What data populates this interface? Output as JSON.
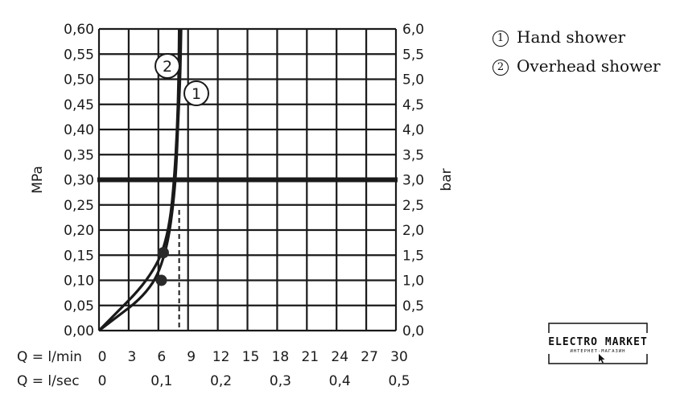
{
  "chart_data": {
    "type": "line",
    "ylabel_left": "MPa",
    "ylabel_right": "bar",
    "ylim": [
      0,
      0.6
    ],
    "y_left_ticks": [
      "0,00",
      "0,05",
      "0,10",
      "0,15",
      "0,20",
      "0,25",
      "0,30",
      "0,35",
      "0,40",
      "0,45",
      "0,50",
      "0,55",
      "0,60"
    ],
    "y_right_ticks": [
      "0,0",
      "0,5",
      "1,0",
      "1,5",
      "2,0",
      "2,5",
      "3,0",
      "3,5",
      "4,0",
      "4,5",
      "5,0",
      "5,5",
      "6,0"
    ],
    "x_rows": [
      {
        "label": "Q = l/min",
        "ticks": [
          "0",
          "3",
          "6",
          "9",
          "12",
          "15",
          "18",
          "21",
          "24",
          "27",
          "30"
        ]
      },
      {
        "label": "Q = l/sec",
        "ticks": [
          "0",
          "0,1",
          "0,2",
          "0,3",
          "0,4",
          "0,5"
        ]
      }
    ],
    "xlim": [
      0,
      30
    ],
    "reference_line_mpa": 0.3,
    "grid": true,
    "series": [
      {
        "name": "Hand shower",
        "marker": "1",
        "points": [
          [
            0,
            0
          ],
          [
            2,
            0.03
          ],
          [
            4,
            0.06
          ],
          [
            5.5,
            0.095
          ],
          [
            6.3,
            0.13
          ],
          [
            7,
            0.18
          ],
          [
            7.5,
            0.25
          ],
          [
            7.8,
            0.32
          ],
          [
            8.0,
            0.42
          ],
          [
            8.2,
            0.5
          ],
          [
            8.3,
            0.6
          ]
        ],
        "highlight": [
          6.3,
          0.1
        ]
      },
      {
        "name": "Overhead shower",
        "marker": "2",
        "points": [
          [
            0,
            0
          ],
          [
            2,
            0.04
          ],
          [
            4,
            0.08
          ],
          [
            5.5,
            0.12
          ],
          [
            6.5,
            0.16
          ],
          [
            7.2,
            0.22
          ],
          [
            7.6,
            0.3
          ],
          [
            7.9,
            0.4
          ],
          [
            8.05,
            0.5
          ],
          [
            8.1,
            0.6
          ]
        ],
        "highlight": [
          6.5,
          0.155
        ]
      }
    ],
    "dashed_x": 8.1
  },
  "legend": [
    {
      "num": "1",
      "label": "Hand shower"
    },
    {
      "num": "2",
      "label": "Overhead shower"
    }
  ],
  "logo": {
    "title": "ELECTRO MARKET",
    "subtitle": "ИНТЕРНЕТ-МАГАЗИН"
  }
}
